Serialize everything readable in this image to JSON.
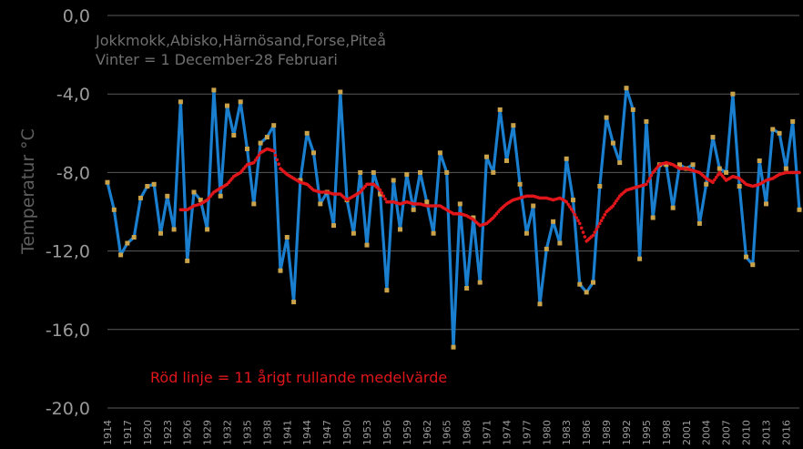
{
  "chart_data": {
    "type": "line",
    "subtitle_lines": [
      "Jokkmokk,Abisko,Härnösand,Forse,Piteå",
      "Vinter = 1 December-28 Februari"
    ],
    "ylabel": "Temperatur °C",
    "xlabel": "",
    "ylim": [
      -20,
      0
    ],
    "yticks": [
      0,
      -4,
      -8,
      -12,
      -16,
      -20
    ],
    "ytick_labels": [
      "0,0",
      "-4,0",
      "-8,0",
      "-12,0",
      "-16,0",
      "-20,0"
    ],
    "xlim": [
      1914,
      2018
    ],
    "xtick_labels": [
      "1914",
      "1917",
      "1920",
      "1923",
      "1926",
      "1929",
      "1932",
      "1935",
      "1938",
      "1941",
      "1944",
      "1947",
      "1950",
      "1953",
      "1956",
      "1959",
      "1962",
      "1965",
      "1968",
      "1971",
      "1974",
      "1977",
      "1980",
      "1983",
      "1986",
      "1989",
      "1992",
      "1995",
      "1998",
      "2001",
      "2004",
      "2007",
      "2010",
      "2013",
      "2016"
    ],
    "grid": true,
    "annotation": "Röd linje = 11 årigt rullande medelvärde",
    "colors": {
      "series": "#1a7fcf",
      "marker": "#c9a24a",
      "rolling": "#e0161b",
      "grid": "#5a5a5a",
      "background": "#000000"
    },
    "series": [
      {
        "x": [
          1914,
          1915,
          1916,
          1917,
          1918,
          1919,
          1920,
          1921,
          1922,
          1923,
          1924,
          1925,
          1926,
          1927,
          1928,
          1929,
          1930,
          1931,
          1932,
          1933,
          1934,
          1935,
          1936,
          1937,
          1938,
          1939,
          1940,
          1941,
          1942,
          1943,
          1944,
          1945,
          1946,
          1947,
          1948,
          1949,
          1950,
          1951,
          1952,
          1953,
          1954,
          1955,
          1956,
          1957,
          1958,
          1959,
          1960,
          1961,
          1962,
          1963,
          1964,
          1965,
          1966,
          1967,
          1968,
          1969,
          1970,
          1971,
          1972,
          1973,
          1974,
          1975,
          1976,
          1977,
          1978,
          1979,
          1980,
          1981,
          1982,
          1983,
          1984,
          1985,
          1986,
          1987,
          1988,
          1989,
          1990,
          1991,
          1992,
          1993,
          1994,
          1995,
          1996,
          1997,
          1998,
          1999,
          2000,
          2001,
          2002,
          2003,
          2004,
          2005,
          2006,
          2007,
          2008,
          2009,
          2010,
          2011,
          2012,
          2013,
          2014,
          2015,
          2016,
          2017,
          2018
        ],
        "values": [
          -8.5,
          -9.9,
          -12.2,
          -11.6,
          -11.3,
          -9.3,
          -8.7,
          -8.6,
          -11.1,
          -9.2,
          -10.9,
          -4.4,
          -12.5,
          -9.0,
          -9.4,
          -10.9,
          -3.8,
          -9.2,
          -4.6,
          -6.1,
          -4.4,
          -6.8,
          -9.6,
          -6.5,
          -6.2,
          -5.6,
          -13.0,
          -11.3,
          -14.6,
          -8.4,
          -6.0,
          -7.0,
          -9.6,
          -9.0,
          -10.7,
          -3.9,
          -9.4,
          -11.1,
          -8.0,
          -11.7,
          -8.0,
          -9.1,
          -14.0,
          -8.4,
          -10.9,
          -8.1,
          -9.9,
          -8.0,
          -9.5,
          -11.1,
          -7.0,
          -8.0,
          -16.9,
          -9.6,
          -13.9,
          -10.3,
          -13.6,
          -7.2,
          -8.0,
          -4.8,
          -7.4,
          -5.6,
          -8.6,
          -11.1,
          -9.7,
          -14.7,
          -11.9,
          -10.5,
          -11.6,
          -7.3,
          -9.4,
          -13.7,
          -14.1,
          -13.6,
          -8.7,
          -5.2,
          -6.5,
          -7.5,
          -3.7,
          -4.8,
          -12.4,
          -5.4,
          -10.3,
          -7.6,
          -7.6,
          -9.8,
          -7.6,
          -7.8,
          -7.6,
          -10.6,
          -8.6,
          -6.2,
          -7.8,
          -8.0,
          -4.0,
          -8.7,
          -12.3,
          -12.7,
          -7.4,
          -9.6,
          -5.8,
          -6.0,
          -7.8,
          -5.4,
          -9.9
        ]
      },
      {
        "x": [
          1925,
          1926,
          1927,
          1928,
          1929,
          1930,
          1931,
          1932,
          1933,
          1934,
          1935,
          1936,
          1937,
          1938,
          1939,
          1940,
          1941,
          1942,
          1943,
          1944,
          1945,
          1946,
          1947,
          1948,
          1949,
          1950,
          1951,
          1952,
          1953,
          1954,
          1955,
          1956,
          1957,
          1958,
          1959,
          1960,
          1961,
          1962,
          1963,
          1964,
          1965,
          1966,
          1967,
          1968,
          1969,
          1970,
          1971,
          1972,
          1973,
          1974,
          1975,
          1976,
          1977,
          1978,
          1979,
          1980,
          1981,
          1982,
          1983,
          1984,
          1985,
          1986,
          1987,
          1988,
          1989,
          1990,
          1991,
          1992,
          1993,
          1994,
          1995,
          1996,
          1997,
          1998,
          1999,
          2000,
          2001,
          2002,
          2003,
          2004,
          2005,
          2006,
          2007,
          2008,
          2009,
          2010,
          2011,
          2012,
          2013,
          2014,
          2015,
          2016,
          2017,
          2018
        ],
        "values": [
          -9.9,
          -9.9,
          -9.7,
          -9.6,
          -9.4,
          -9.0,
          -8.8,
          -8.6,
          -8.2,
          -8.0,
          -7.6,
          -7.5,
          -7.0,
          -6.8,
          -6.9,
          -7.8,
          -8.1,
          -8.3,
          -8.5,
          -8.6,
          -8.9,
          -9.0,
          -9.0,
          -9.1,
          -9.1,
          -9.4,
          -9.2,
          -9.0,
          -8.6,
          -8.6,
          -8.9,
          -9.5,
          -9.5,
          -9.6,
          -9.5,
          -9.6,
          -9.6,
          -9.7,
          -9.7,
          -9.7,
          -9.9,
          -10.1,
          -10.1,
          -10.2,
          -10.4,
          -10.7,
          -10.6,
          -10.3,
          -9.9,
          -9.6,
          -9.4,
          -9.3,
          -9.2,
          -9.2,
          -9.3,
          -9.3,
          -9.4,
          -9.3,
          -9.5,
          -10.0,
          -10.6,
          -11.5,
          -11.2,
          -10.6,
          -10.0,
          -9.7,
          -9.2,
          -8.9,
          -8.8,
          -8.7,
          -8.6,
          -8.0,
          -7.6,
          -7.5,
          -7.6,
          -7.8,
          -7.8,
          -7.9,
          -8.0,
          -8.3,
          -8.5,
          -8.0,
          -8.4,
          -8.2,
          -8.3,
          -8.6,
          -8.7,
          -8.6,
          -8.4,
          -8.3,
          -8.1,
          -8.0,
          -8.0,
          -8.0
        ]
      }
    ]
  }
}
